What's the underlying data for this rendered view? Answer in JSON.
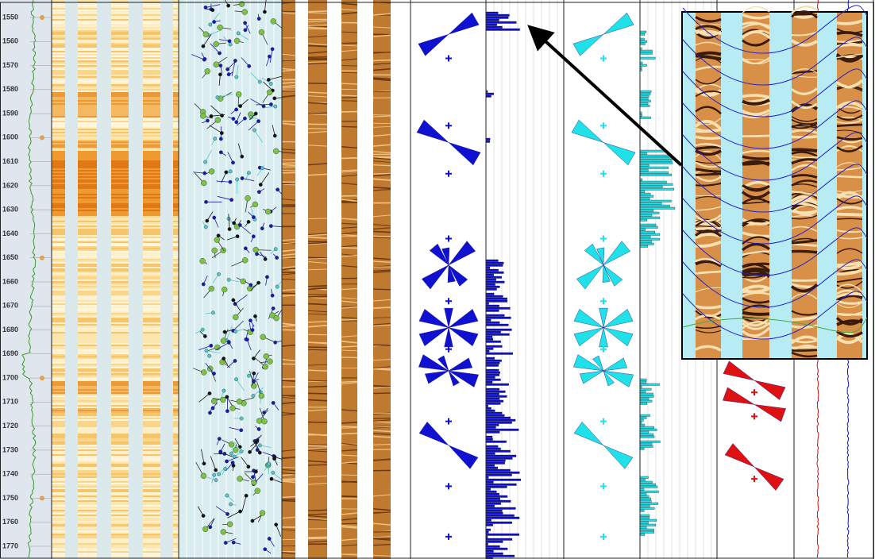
{
  "depth_track": {
    "ticks": [
      1550,
      1560,
      1570,
      1580,
      1590,
      1600,
      1610,
      1620,
      1630,
      1640,
      1650,
      1660,
      1670,
      1680,
      1690,
      1700,
      1710,
      1720,
      1730,
      1740,
      1750,
      1760,
      1770
    ]
  }
}
